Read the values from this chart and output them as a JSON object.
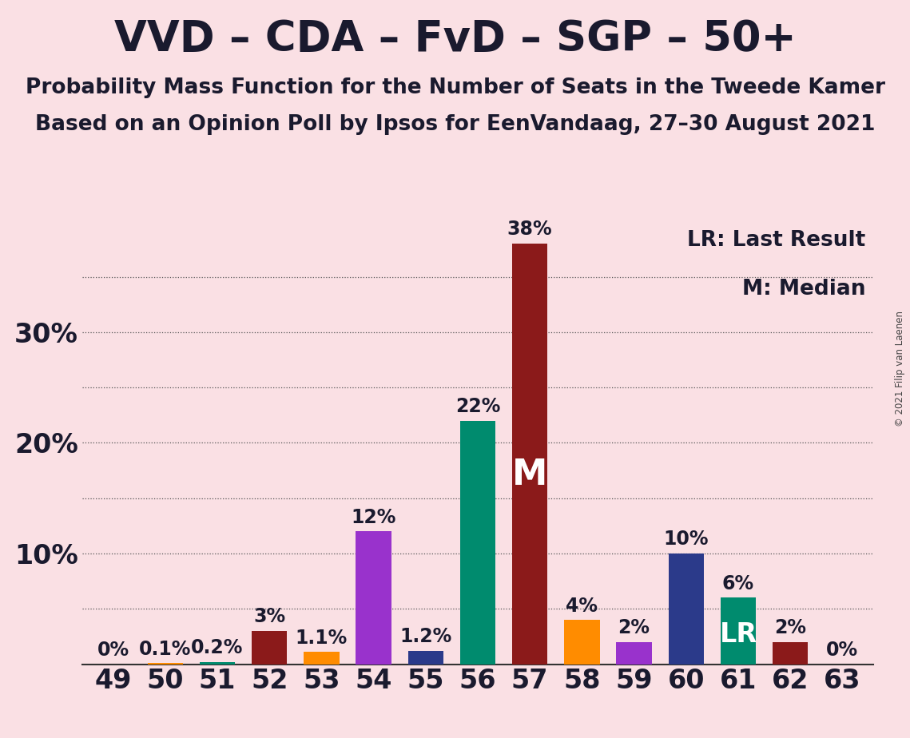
{
  "title": "VVD – CDA – FvD – SGP – 50+",
  "subtitle1": "Probability Mass Function for the Number of Seats in the Tweede Kamer",
  "subtitle2": "Based on an Opinion Poll by Ipsos for EenVandaag, 27–30 August 2021",
  "copyright": "© 2021 Filip van Laenen",
  "legend_lr": "LR: Last Result",
  "legend_m": "M: Median",
  "seats": [
    49,
    50,
    51,
    52,
    53,
    54,
    55,
    56,
    57,
    58,
    59,
    60,
    61,
    62,
    63
  ],
  "probabilities": [
    0.0,
    0.1,
    0.2,
    3.0,
    1.1,
    12.0,
    1.2,
    22.0,
    38.0,
    4.0,
    2.0,
    10.0,
    6.0,
    2.0,
    0.0
  ],
  "bar_colors": [
    "#8B1A1A",
    "#FF8C00",
    "#008B6E",
    "#8B1A1A",
    "#FF8C00",
    "#9932CC",
    "#2B3A8A",
    "#008B6E",
    "#8B1A1A",
    "#FF8C00",
    "#9932CC",
    "#2B3A8A",
    "#008B6E",
    "#8B1A1A",
    "#8B1A1A"
  ],
  "median_seat": 57,
  "last_result_seat": 61,
  "background_color": "#FAE0E4",
  "ylim": [
    0,
    40
  ],
  "ytick_major": [
    10,
    20,
    30
  ],
  "ytick_major_labels": [
    "10%",
    "20%",
    "30%"
  ],
  "grid_yticks": [
    5,
    10,
    15,
    20,
    25,
    30,
    35
  ],
  "title_fontsize": 38,
  "subtitle_fontsize": 19,
  "axis_tick_fontsize": 24,
  "annotation_fontsize": 17,
  "median_label_fontsize": 32,
  "lr_label_fontsize": 24,
  "legend_fontsize": 19
}
